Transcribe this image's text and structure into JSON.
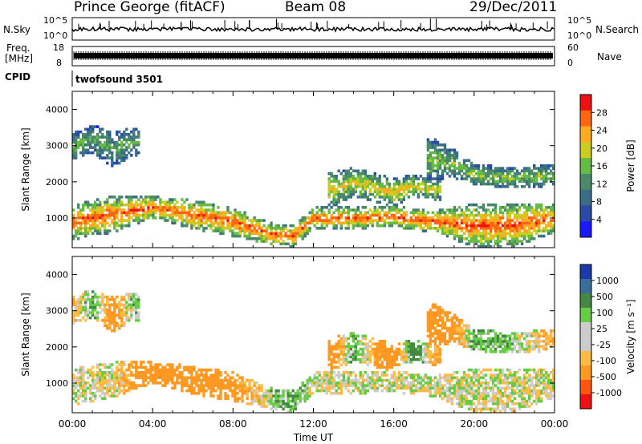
{
  "header": {
    "station": "Prince George (fitACF)",
    "beam": "Beam 08",
    "date": "29/Dec/2011"
  },
  "strips": {
    "nsky_label": "N.Sky",
    "nsky_ticks": [
      "10^5",
      "10^0"
    ],
    "nsearch_label": "N.Search",
    "nsearch_ticks": [
      "10^5",
      "10^0"
    ],
    "freq_label_line1": "Freq.",
    "freq_label_line2": "[MHz]",
    "freq_ticks": [
      "18",
      "8"
    ],
    "nave_label": "Nave",
    "nave_ticks": [
      "60",
      "0"
    ],
    "cpid_label": "CPID",
    "cpid_value": "twofsound 3501"
  },
  "colors": {
    "power_scale": [
      "#1a1aff",
      "#2a4aa8",
      "#3a6e88",
      "#4a8a68",
      "#66bb44",
      "#cccc22",
      "#ffaa22",
      "#ff6611",
      "#ee1111"
    ],
    "velocity_scale": [
      "#ee1111",
      "#ff5511",
      "#ff9922",
      "#ffbb44",
      "#cccccc",
      "#cccccc",
      "#66cc44",
      "#448844",
      "#3a6e9a",
      "#1a3aa8"
    ]
  },
  "chart_data": [
    {
      "type": "heatmap",
      "panel": "power",
      "xlabel": "",
      "ylabel": "Slant Range [km]",
      "y_ticks": [
        "1000",
        "2000",
        "3000",
        "4000"
      ],
      "ylim": [
        180,
        4500
      ],
      "colorbar_label": "Power [dB]",
      "colorbar_ticks": [
        "4",
        "8",
        "12",
        "16",
        "20",
        "24",
        "28"
      ],
      "clim": [
        0,
        30
      ],
      "bands": [
        {
          "t": [
            0,
            2,
            4,
            6,
            8,
            10,
            11,
            12,
            14,
            16,
            18,
            20,
            22,
            24
          ],
          "r": [
            900,
            1100,
            1300,
            1100,
            900,
            550,
            500,
            1000,
            1000,
            1050,
            900,
            800,
            800,
            1000
          ],
          "w": [
            500,
            500,
            300,
            400,
            400,
            300,
            300,
            300,
            300,
            300,
            300,
            600,
            600,
            400
          ],
          "level": 26
        },
        {
          "t": [
            0,
            1,
            2,
            3
          ],
          "r": [
            3000,
            3200,
            2900,
            3100
          ],
          "w": [
            400,
            400,
            500,
            400
          ],
          "level": 14
        },
        {
          "t": [
            13,
            14,
            16,
            17,
            18
          ],
          "r": [
            1800,
            2000,
            1700,
            1900,
            1800
          ],
          "w": [
            500,
            400,
            400,
            300,
            300
          ],
          "level": 20
        },
        {
          "t": [
            18,
            19,
            20,
            22,
            24
          ],
          "r": [
            2600,
            2500,
            2200,
            2100,
            2200
          ],
          "w": [
            600,
            400,
            300,
            300,
            300
          ],
          "level": 16
        }
      ]
    },
    {
      "type": "heatmap",
      "panel": "velocity",
      "xlabel": "Time UT",
      "x_ticks": [
        "00:00",
        "04:00",
        "08:00",
        "12:00",
        "16:00",
        "20:00",
        "00:00"
      ],
      "xlim": [
        0,
        24
      ],
      "ylabel": "Slant Range [km]",
      "y_ticks": [
        "1000",
        "2000",
        "3000",
        "4000"
      ],
      "ylim": [
        180,
        4500
      ],
      "colorbar_label": "Velocity [m s⁻¹]",
      "colorbar_ticks": [
        "1000",
        "500",
        "100",
        "25",
        "-25",
        "-100",
        "-500",
        "-1000"
      ],
      "clim": [
        -1000,
        1000
      ],
      "bands": [
        {
          "t": [
            0,
            2,
            4,
            6,
            8,
            10,
            11,
            12,
            14,
            16,
            18,
            20,
            22,
            24
          ],
          "r": [
            900,
            1100,
            1300,
            1100,
            900,
            550,
            500,
            1000,
            1000,
            1050,
            900,
            800,
            800,
            1000
          ],
          "w": [
            500,
            500,
            300,
            400,
            400,
            300,
            300,
            300,
            300,
            300,
            300,
            600,
            600,
            400
          ],
          "v": [
            0,
            0,
            -300,
            -300,
            -200,
            50,
            100,
            0,
            0,
            0,
            0,
            0,
            0,
            0
          ]
        },
        {
          "t": [
            0,
            1,
            2,
            3
          ],
          "r": [
            3000,
            3200,
            2900,
            3100
          ],
          "w": [
            400,
            400,
            500,
            400
          ],
          "v": [
            -100,
            100,
            -200,
            50
          ]
        },
        {
          "t": [
            13,
            14,
            16,
            17,
            18
          ],
          "r": [
            1800,
            2000,
            1700,
            1900,
            1800
          ],
          "w": [
            500,
            400,
            400,
            300,
            300
          ],
          "v": [
            -200,
            100,
            -300,
            200,
            -100
          ]
        },
        {
          "t": [
            18,
            19,
            20,
            22,
            24
          ],
          "r": [
            2600,
            2500,
            2200,
            2100,
            2200
          ],
          "w": [
            600,
            400,
            300,
            300,
            300
          ],
          "v": [
            -300,
            -200,
            100,
            50,
            -100
          ]
        }
      ]
    }
  ]
}
